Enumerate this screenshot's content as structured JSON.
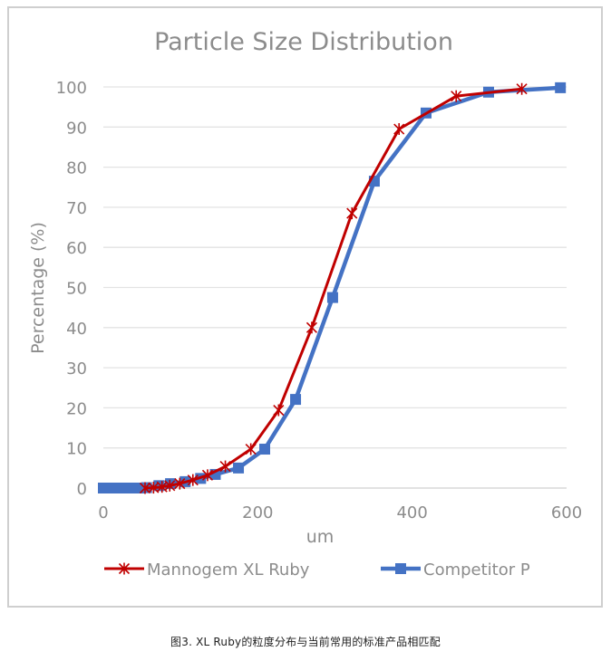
{
  "chart_data": {
    "type": "line",
    "title": "Particle Size Distribution",
    "xlabel": "um",
    "ylabel": "Percentage (%)",
    "xlim": [
      0,
      600
    ],
    "ylim": [
      0,
      100
    ],
    "x_ticks": [
      "0",
      "200",
      "400",
      "600"
    ],
    "y_ticks": [
      "0",
      "10",
      "20",
      "30",
      "40",
      "50",
      "60",
      "70",
      "80",
      "90",
      "100"
    ],
    "grid": "horizontal",
    "legend_position": "bottom",
    "series": [
      {
        "name": "Mannogem XL Ruby",
        "color": "#C00000",
        "marker": "star",
        "x": [
          54,
          65,
          76,
          86,
          99,
          116,
          135,
          158,
          191,
          227,
          270,
          322,
          383,
          457,
          542
        ],
        "y": [
          0,
          0.1,
          0.3,
          0.6,
          1.1,
          2.0,
          3.2,
          5.4,
          9.7,
          19.4,
          40.0,
          68.5,
          89.5,
          97.7,
          99.5
        ]
      },
      {
        "name": "Competitor P",
        "color": "#4472C4",
        "marker": "square",
        "x": [
          0,
          9,
          19,
          28,
          38,
          47,
          56,
          72,
          87,
          106,
          126,
          145,
          175,
          209,
          249,
          297,
          351,
          418,
          499,
          592
        ],
        "y": [
          0,
          0,
          0,
          0,
          0,
          0,
          0.1,
          0.6,
          1.1,
          1.6,
          2.4,
          3.4,
          5.0,
          9.7,
          22.1,
          47.5,
          76.5,
          93.5,
          98.7,
          99.8
        ]
      }
    ]
  },
  "caption": "图3. XL Ruby的粒度分布与当前常用的标准产品相匹配"
}
